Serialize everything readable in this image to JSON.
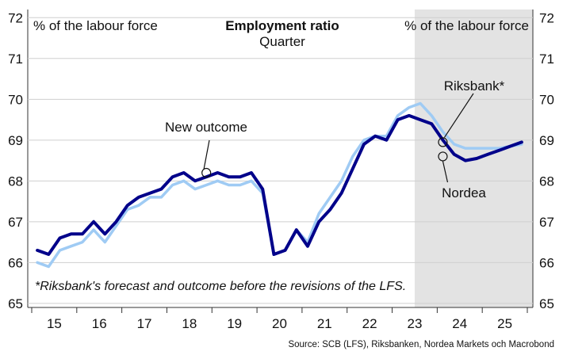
{
  "chart_data": {
    "type": "line",
    "title": "Employment ratio",
    "subtitle": "Quarter",
    "ylabel_left": "% of the labour force",
    "ylabel_right": "% of the labour force",
    "ylim": [
      64.9,
      72.2
    ],
    "y_ticks": [
      65,
      66,
      67,
      68,
      69,
      70,
      71,
      72
    ],
    "x_start_year": 2015,
    "x_end_year": 2025,
    "x_tick_labels": [
      "15",
      "16",
      "17",
      "18",
      "19",
      "20",
      "21",
      "22",
      "23",
      "24",
      "25"
    ],
    "forecast_shading_start": "2023Q3",
    "grid": true,
    "quarters": [
      "2015Q1",
      "2015Q2",
      "2015Q3",
      "2015Q4",
      "2016Q1",
      "2016Q2",
      "2016Q3",
      "2016Q4",
      "2017Q1",
      "2017Q2",
      "2017Q3",
      "2017Q4",
      "2018Q1",
      "2018Q2",
      "2018Q3",
      "2018Q4",
      "2019Q1",
      "2019Q2",
      "2019Q3",
      "2019Q4",
      "2020Q1",
      "2020Q2",
      "2020Q3",
      "2020Q4",
      "2021Q1",
      "2021Q2",
      "2021Q3",
      "2021Q4",
      "2022Q1",
      "2022Q2",
      "2022Q3",
      "2022Q4",
      "2023Q1",
      "2023Q2",
      "2023Q3",
      "2023Q4",
      "2024Q1",
      "2024Q2",
      "2024Q3",
      "2024Q4",
      "2025Q1",
      "2025Q2",
      "2025Q3",
      "2025Q4"
    ],
    "series": [
      {
        "name": "Riksbank*",
        "color": "#9fcbf4",
        "values": [
          66.0,
          65.9,
          66.3,
          66.4,
          66.5,
          66.8,
          66.5,
          66.9,
          67.3,
          67.4,
          67.6,
          67.6,
          67.9,
          68.0,
          67.8,
          67.9,
          68.0,
          67.9,
          67.9,
          68.0,
          67.7,
          66.2,
          66.3,
          66.8,
          66.5,
          67.2,
          67.6,
          68.0,
          68.6,
          69.0,
          69.1,
          69.1,
          69.6,
          69.8,
          69.9,
          69.6,
          69.2,
          68.9,
          68.8,
          68.8,
          68.8,
          68.8,
          68.85,
          68.9
        ]
      },
      {
        "name": "Nordea",
        "color": "#00008a",
        "values": [
          66.3,
          66.2,
          66.6,
          66.7,
          66.7,
          67.0,
          66.7,
          67.0,
          67.4,
          67.6,
          67.7,
          67.8,
          68.1,
          68.2,
          68.0,
          68.1,
          68.2,
          68.1,
          68.1,
          68.2,
          67.8,
          66.2,
          66.3,
          66.8,
          66.4,
          67.0,
          67.3,
          67.7,
          68.3,
          68.9,
          69.1,
          69.0,
          69.5,
          69.6,
          69.5,
          69.4,
          69.0,
          68.65,
          68.5,
          68.55,
          68.65,
          68.75,
          68.85,
          68.95
        ]
      }
    ],
    "annotations": [
      {
        "label": "New outcome",
        "at_quarter": "2018Q4",
        "value": 68.2
      },
      {
        "label": "Riksbank*",
        "at_quarter": "2024Q1",
        "value": 68.95
      },
      {
        "label": "Nordea",
        "at_quarter": "2024Q1",
        "value": 68.6
      }
    ],
    "footnote": "*Riksbank's forecast and outcome before the revisions of the LFS.",
    "source": "Source: SCB (LFS), Riksbanken, Nordea Markets och Macrobond"
  }
}
